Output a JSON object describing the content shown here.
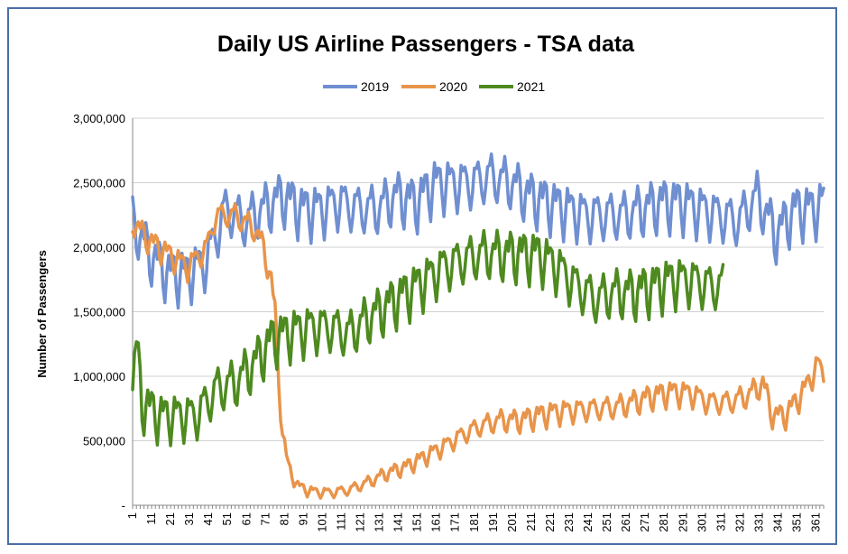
{
  "chart_data": {
    "type": "line",
    "title": "Daily US Airline Passengers - TSA data",
    "xlabel": "",
    "ylabel": "Number of Passengers",
    "ylim": [
      0,
      3000000
    ],
    "yticks": [
      0,
      500000,
      1000000,
      1500000,
      2000000,
      2500000,
      3000000
    ],
    "ytick_labels": [
      "-",
      "500,000",
      "1,000,000",
      "1,500,000",
      "2,000,000",
      "2,500,000",
      "3,000,000"
    ],
    "xlim": [
      1,
      365
    ],
    "xticks": [
      1,
      11,
      21,
      31,
      41,
      51,
      61,
      71,
      81,
      91,
      101,
      111,
      121,
      131,
      141,
      151,
      161,
      171,
      181,
      191,
      201,
      211,
      221,
      231,
      241,
      251,
      261,
      271,
      281,
      291,
      301,
      311,
      321,
      331,
      341,
      351,
      361
    ],
    "ytick_gridlines": true,
    "legend_position": "top-center",
    "series": [
      {
        "name": "2019",
        "color": "#6f8fd1",
        "keypoints": [
          [
            1,
            2200000
          ],
          [
            10,
            1950000
          ],
          [
            20,
            1800000
          ],
          [
            30,
            1800000
          ],
          [
            40,
            1900000
          ],
          [
            50,
            2300000
          ],
          [
            60,
            2200000
          ],
          [
            70,
            2300000
          ],
          [
            80,
            2400000
          ],
          [
            90,
            2300000
          ],
          [
            100,
            2300000
          ],
          [
            110,
            2350000
          ],
          [
            120,
            2300000
          ],
          [
            130,
            2300000
          ],
          [
            140,
            2400000
          ],
          [
            150,
            2350000
          ],
          [
            160,
            2500000
          ],
          [
            170,
            2500000
          ],
          [
            180,
            2500000
          ],
          [
            190,
            2550000
          ],
          [
            200,
            2500000
          ],
          [
            210,
            2400000
          ],
          [
            220,
            2350000
          ],
          [
            230,
            2300000
          ],
          [
            240,
            2250000
          ],
          [
            250,
            2250000
          ],
          [
            260,
            2250000
          ],
          [
            270,
            2300000
          ],
          [
            280,
            2350000
          ],
          [
            290,
            2350000
          ],
          [
            300,
            2300000
          ],
          [
            310,
            2250000
          ],
          [
            320,
            2200000
          ],
          [
            330,
            2400000
          ],
          [
            340,
            2100000
          ],
          [
            350,
            2300000
          ],
          [
            360,
            2300000
          ],
          [
            365,
            2350000
          ]
        ],
        "amplitude": 230000
      },
      {
        "name": "2020",
        "color": "#e8944a",
        "keypoints": [
          [
            1,
            2200000
          ],
          [
            10,
            2050000
          ],
          [
            20,
            1950000
          ],
          [
            30,
            1850000
          ],
          [
            40,
            2000000
          ],
          [
            45,
            2250000
          ],
          [
            55,
            2250000
          ],
          [
            65,
            2150000
          ],
          [
            70,
            2000000
          ],
          [
            74,
            1750000
          ],
          [
            76,
            1500000
          ],
          [
            78,
            1000000
          ],
          [
            80,
            550000
          ],
          [
            83,
            300000
          ],
          [
            88,
            150000
          ],
          [
            95,
            110000
          ],
          [
            105,
            100000
          ],
          [
            115,
            120000
          ],
          [
            125,
            180000
          ],
          [
            135,
            250000
          ],
          [
            145,
            300000
          ],
          [
            155,
            380000
          ],
          [
            165,
            460000
          ],
          [
            175,
            550000
          ],
          [
            185,
            620000
          ],
          [
            195,
            660000
          ],
          [
            205,
            660000
          ],
          [
            215,
            700000
          ],
          [
            225,
            730000
          ],
          [
            235,
            740000
          ],
          [
            245,
            750000
          ],
          [
            255,
            760000
          ],
          [
            265,
            800000
          ],
          [
            275,
            850000
          ],
          [
            285,
            880000
          ],
          [
            295,
            870000
          ],
          [
            305,
            800000
          ],
          [
            315,
            800000
          ],
          [
            325,
            850000
          ],
          [
            333,
            950000
          ],
          [
            338,
            700000
          ],
          [
            345,
            700000
          ],
          [
            355,
            900000
          ],
          [
            362,
            1100000
          ],
          [
            365,
            1000000
          ]
        ],
        "amplitude": 110000
      },
      {
        "name": "2021",
        "color": "#4e8a1f",
        "keypoints": [
          [
            1,
            900000
          ],
          [
            3,
            1250000
          ],
          [
            6,
            800000
          ],
          [
            15,
            700000
          ],
          [
            25,
            700000
          ],
          [
            35,
            700000
          ],
          [
            45,
            900000
          ],
          [
            55,
            950000
          ],
          [
            65,
            1100000
          ],
          [
            75,
            1300000
          ],
          [
            85,
            1350000
          ],
          [
            95,
            1380000
          ],
          [
            105,
            1380000
          ],
          [
            115,
            1330000
          ],
          [
            125,
            1450000
          ],
          [
            135,
            1550000
          ],
          [
            145,
            1650000
          ],
          [
            155,
            1750000
          ],
          [
            165,
            1850000
          ],
          [
            175,
            1900000
          ],
          [
            185,
            1950000
          ],
          [
            195,
            1950000
          ],
          [
            205,
            1950000
          ],
          [
            215,
            1950000
          ],
          [
            225,
            1850000
          ],
          [
            235,
            1700000
          ],
          [
            245,
            1600000
          ],
          [
            255,
            1650000
          ],
          [
            265,
            1650000
          ],
          [
            275,
            1700000
          ],
          [
            285,
            1750000
          ],
          [
            295,
            1750000
          ],
          [
            305,
            1700000
          ],
          [
            312,
            1700000
          ]
        ],
        "amplitude": 220000
      }
    ]
  }
}
